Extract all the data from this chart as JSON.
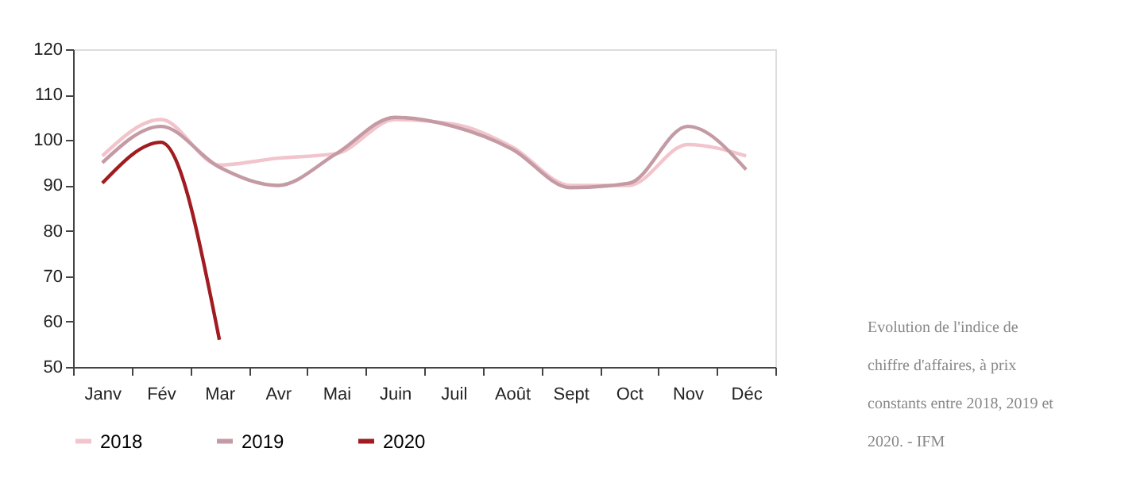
{
  "chart_data": {
    "type": "line",
    "categories": [
      "Janv",
      "Fév",
      "Mar",
      "Avr",
      "Mai",
      "Juin",
      "Juil",
      "Août",
      "Sept",
      "Oct",
      "Nov",
      "Déc"
    ],
    "series": [
      {
        "name": "2018",
        "color": "#f2c4cc",
        "values": [
          96.5,
          104.5,
          94.5,
          96,
          97,
          104.5,
          103.5,
          98.5,
          90,
          90,
          99,
          96.5
        ]
      },
      {
        "name": "2019",
        "color": "#c49aa4",
        "values": [
          95,
          103,
          94,
          90,
          97,
          105,
          103,
          98,
          89.5,
          90.5,
          103,
          93.5
        ]
      },
      {
        "name": "2020",
        "color": "#a01c20",
        "values": [
          90.5,
          99.5,
          56,
          null,
          null,
          null,
          null,
          null,
          null,
          null,
          null,
          null
        ]
      }
    ],
    "ylim": [
      50,
      120
    ],
    "yticks": [
      50,
      60,
      70,
      80,
      90,
      100,
      110,
      120
    ],
    "grid": false,
    "legend": "bottom",
    "marker": "none",
    "line_style": "solid",
    "annotations": [
      "Evolution de l'indice de\nchiffre d'affaires, à prix\nconstants entre 2018, 2019 et\n2020. - IFM"
    ]
  }
}
